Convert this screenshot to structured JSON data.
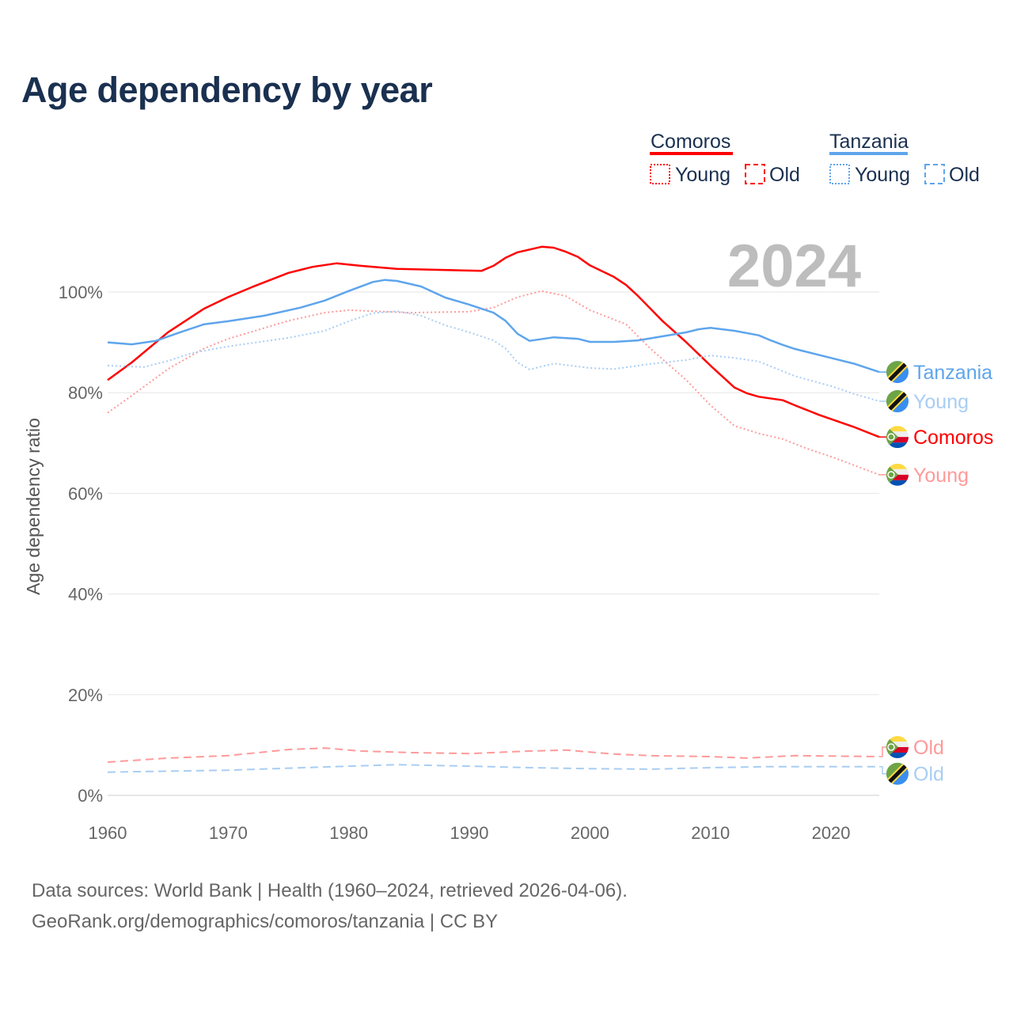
{
  "title": "Age dependency by year",
  "footer": {
    "line1": "Data sources: World Bank | Health (1960–2024, retrieved 2026-04-06).",
    "line2": "GeoRank.org/demographics/comoros/tanzania | CC BY"
  },
  "chart_data": {
    "type": "line",
    "title": "Age dependency by year",
    "xlabel": "",
    "ylabel": "Age dependency ratio",
    "xlim": [
      1960,
      2024
    ],
    "ylim": [
      0,
      110
    ],
    "x_ticks": [
      1960,
      1970,
      1980,
      1990,
      2000,
      2010,
      2020
    ],
    "y_ticks": [
      0,
      20,
      40,
      60,
      80,
      100
    ],
    "y_tick_labels": [
      "0%",
      "20%",
      "40%",
      "60%",
      "80%",
      "100%"
    ],
    "year_label": "2024",
    "grid": true,
    "legend": {
      "placement": "top-right",
      "groups": [
        {
          "country": "Comoros",
          "color": "#ff0000",
          "items": [
            "Young",
            "Old"
          ]
        },
        {
          "country": "Tanzania",
          "color": "#5ea5ec",
          "items": [
            "Young",
            "Old"
          ]
        }
      ]
    },
    "series": [
      {
        "name": "Comoros",
        "end_label": "Comoros",
        "country": "comoros",
        "style": "solid",
        "color": "#ff0000",
        "x": [
          1960,
          1962,
          1965,
          1968,
          1970,
          1972,
          1975,
          1977,
          1979,
          1981,
          1984,
          1991,
          1992,
          1993,
          1994,
          1996,
          1997,
          1998,
          1999,
          2000,
          2002,
          2003,
          2004,
          2006,
          2008,
          2010,
          2012,
          2013,
          2014,
          2016,
          2017,
          2019,
          2022,
          2024
        ],
        "y": [
          82.5,
          86,
          92,
          96.7,
          99,
          101,
          103.8,
          105,
          105.7,
          105.2,
          104.6,
          104.2,
          105.2,
          106.8,
          107.9,
          109,
          108.8,
          108,
          107,
          105.3,
          103,
          101.4,
          99.2,
          94.3,
          90,
          85.4,
          81,
          79.9,
          79.2,
          78.5,
          77.5,
          75.6,
          73.1,
          71.2
        ]
      },
      {
        "name": "Comoros Young",
        "end_label": "Young",
        "country": "comoros",
        "style": "dotted",
        "color": "#ff9a9a",
        "x": [
          1960,
          1962,
          1965,
          1968,
          1970,
          1975,
          1978,
          1980,
          1985,
          1990,
          1992,
          1994,
          1996,
          1998,
          2000,
          2003,
          2005,
          2008,
          2010,
          2012,
          2014,
          2016,
          2018,
          2020,
          2024
        ],
        "y": [
          76,
          79.4,
          84.7,
          88.8,
          90.7,
          94.3,
          95.9,
          96.4,
          95.9,
          96.1,
          96.9,
          99,
          100.2,
          99.2,
          96.4,
          93.6,
          88.8,
          82.5,
          77.5,
          73.4,
          71.9,
          70.8,
          68.9,
          67.3,
          63.7
        ]
      },
      {
        "name": "Comoros Old",
        "end_label": "Old",
        "country": "comoros",
        "style": "dashed",
        "color": "#ff9a9a",
        "x": [
          1960,
          1965,
          1970,
          1975,
          1978,
          1981,
          1985,
          1990,
          1995,
          1998,
          2002,
          2005,
          2010,
          2013,
          2017,
          2024
        ],
        "y": [
          6.6,
          7.4,
          7.9,
          9.1,
          9.4,
          8.8,
          8.5,
          8.3,
          8.8,
          9.0,
          8.2,
          7.9,
          7.7,
          7.4,
          7.9,
          7.7
        ]
      },
      {
        "name": "Tanzania",
        "end_label": "Tanzania",
        "country": "tanzania",
        "style": "solid",
        "color": "#5ea5ec",
        "x": [
          1960,
          1962,
          1964,
          1966,
          1968,
          1970,
          1973,
          1976,
          1978,
          1980,
          1982,
          1983,
          1984,
          1986,
          1988,
          1990,
          1992,
          1993,
          1994,
          1995,
          1997,
          1999,
          2000,
          2002,
          2004,
          2006,
          2008,
          2009,
          2010,
          2012,
          2014,
          2015,
          2016,
          2017,
          2020,
          2022,
          2024
        ],
        "y": [
          90,
          89.6,
          90.3,
          92,
          93.6,
          94.2,
          95.3,
          96.9,
          98.3,
          100.2,
          102,
          102.4,
          102.2,
          101.1,
          98.9,
          97.5,
          95.9,
          94.3,
          91.7,
          90.3,
          91,
          90.7,
          90.1,
          90.1,
          90.4,
          91.2,
          92,
          92.6,
          92.9,
          92.3,
          91.4,
          90.4,
          89.5,
          88.7,
          86.9,
          85.7,
          84.1
        ]
      },
      {
        "name": "Tanzania Young",
        "end_label": "Young",
        "country": "tanzania",
        "style": "dotted",
        "color": "#a9cdf3",
        "x": [
          1960,
          1963,
          1965,
          1967,
          1970,
          1975,
          1978,
          1980,
          1982,
          1984,
          1986,
          1988,
          1990,
          1992,
          1993,
          1994,
          1995,
          1997,
          2000,
          2002,
          2005,
          2008,
          2010,
          2012,
          2014,
          2017,
          2020,
          2022,
          2024
        ],
        "y": [
          85.4,
          85.1,
          86.3,
          87.9,
          89.2,
          90.9,
          92.3,
          94.2,
          95.8,
          96.2,
          95.3,
          93.4,
          92,
          90.4,
          88.8,
          86,
          84.6,
          85.8,
          84.9,
          84.7,
          85.7,
          86.5,
          87.4,
          86.9,
          86.2,
          83.3,
          81.3,
          79.7,
          78.3
        ]
      },
      {
        "name": "Tanzania Old",
        "end_label": "Old",
        "country": "tanzania",
        "style": "dashed",
        "color": "#a9cdf3",
        "x": [
          1960,
          1970,
          1980,
          1984,
          1990,
          1995,
          2000,
          2005,
          2010,
          2015,
          2024
        ],
        "y": [
          4.6,
          5.0,
          5.8,
          6.1,
          5.8,
          5.5,
          5.3,
          5.2,
          5.5,
          5.7,
          5.7
        ]
      }
    ]
  }
}
